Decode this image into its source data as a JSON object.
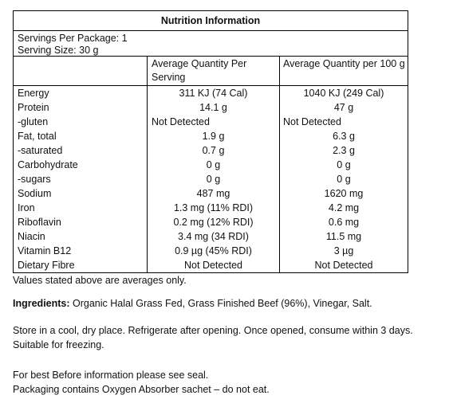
{
  "panel": {
    "title": "Nutrition Information",
    "servings_per_package": "Servings Per Package: 1",
    "serving_size": "Serving Size: 30 g",
    "col_serving_header": "Average Quantity Per Serving",
    "col_100g_header": "Average Quantity per 100 g"
  },
  "nutrients": [
    {
      "name": "Energy",
      "per_serving": "311 KJ (74 Cal)",
      "per_100g": "1040 KJ (249 Cal)"
    },
    {
      "name": "Protein",
      "per_serving": "14.1 g",
      "per_100g": "47 g"
    },
    {
      "name": "-gluten",
      "per_serving": "Not Detected",
      "per_100g": "Not Detected"
    },
    {
      "name": "Fat, total",
      "per_serving": "1.9 g",
      "per_100g": "6.3 g"
    },
    {
      "name": "-saturated",
      "per_serving": "0.7 g",
      "per_100g": "2.3 g"
    },
    {
      "name": "Carbohydrate",
      "per_serving": "0 g",
      "per_100g": "0 g"
    },
    {
      "name": "-sugars",
      "per_serving": "0 g",
      "per_100g": "0 g"
    },
    {
      "name": "Sodium",
      "per_serving": "487 mg",
      "per_100g": "1620 mg"
    },
    {
      "name": "Iron",
      "per_serving": "1.3 mg (11% RDI)",
      "per_100g": "4.2 mg"
    },
    {
      "name": "Riboflavin",
      "per_serving": "0.2 mg (12% RDI)",
      "per_100g": "0.6 mg"
    },
    {
      "name": "Niacin",
      "per_serving": "3.4 mg (34 RDI)",
      "per_100g": "11.5 mg"
    },
    {
      "name": "Vitamin B12",
      "per_serving": "0.9 µg (45% RDI)",
      "per_100g": "3 µg"
    },
    {
      "name": "Dietary Fibre",
      "per_serving": "Not Detected",
      "per_100g": "Not Detected"
    }
  ],
  "notes": {
    "averages": "Values stated above are averages only.",
    "ingredients_label": "Ingredients:",
    "ingredients_text": " Organic Halal Grass Fed, Grass Finished Beef (96%), Vinegar, Salt.",
    "storage_1": "Store in a cool, dry place. Refrigerate after opening. Once opened, consume within 3 days.",
    "storage_2": "Suitable for freezing.",
    "best_before": "For best Before information please see seal.",
    "packaging": "Packaging contains Oxygen Absorber sachet – do not eat."
  }
}
